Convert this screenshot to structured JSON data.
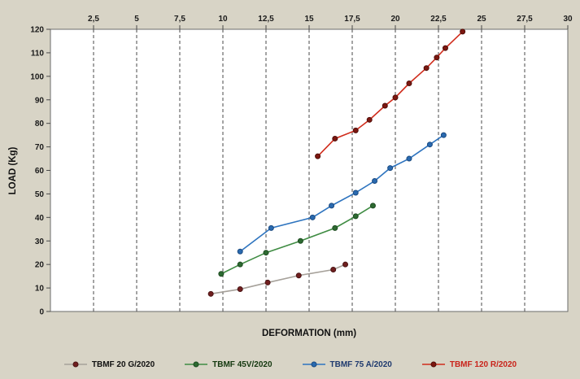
{
  "page": {
    "background_color": "#d8d4c6",
    "plot_background_color": "#ffffff",
    "grid_color": "#4a4a4a",
    "tick_label_color": "#1a1a1a"
  },
  "chart_data": {
    "type": "line",
    "title": "",
    "xlabel": "DEFORMATION (mm)",
    "ylabel": "LOAD (Kg)",
    "xlim": [
      0,
      30
    ],
    "ylim": [
      0,
      120
    ],
    "grid": "vertical-dashed-only",
    "legend_position": "bottom",
    "x_tick_values": [
      2.5,
      5,
      7.5,
      10,
      12.5,
      15,
      17.5,
      20,
      22.5,
      25,
      27.5,
      30
    ],
    "x_tick_labels": [
      "2,5",
      "5",
      "7,5",
      "10",
      "12,5",
      "15",
      "17,5",
      "20",
      "22,5",
      "25",
      "27,5",
      "30"
    ],
    "y_tick_values": [
      0,
      10,
      20,
      30,
      40,
      50,
      60,
      70,
      80,
      90,
      100,
      110,
      120
    ],
    "y_tick_labels": [
      "0",
      "10",
      "20",
      "30",
      "40",
      "50",
      "60",
      "70",
      "80",
      "90",
      "100",
      "110",
      "120"
    ],
    "series": [
      {
        "name": "TBMF 20 G/2020",
        "line_color": "#a6a19a",
        "marker_color": "#701f1f",
        "marker_stroke": "#4a1414",
        "label_color": "#101010",
        "points": [
          [
            9.3,
            7.5
          ],
          [
            11,
            9.5
          ],
          [
            12.6,
            12.3
          ],
          [
            14.4,
            15.3
          ],
          [
            16.4,
            17.8
          ],
          [
            17.1,
            20
          ]
        ]
      },
      {
        "name": "TBMF 45V/2020",
        "line_color": "#3f8c43",
        "marker_color": "#2d6a31",
        "marker_stroke": "#1d4a20",
        "label_color": "#14380f",
        "points": [
          [
            9.9,
            16
          ],
          [
            11,
            20
          ],
          [
            12.5,
            25
          ],
          [
            14.5,
            30
          ],
          [
            16.5,
            35.5
          ],
          [
            17.7,
            40.5
          ],
          [
            18.7,
            45
          ]
        ]
      },
      {
        "name": "TBMF 75 A/2020",
        "line_color": "#2e74bf",
        "marker_color": "#2a6ab0",
        "marker_stroke": "#1b4a80",
        "label_color": "#1f3a6e",
        "points": [
          [
            11,
            25.5
          ],
          [
            12.8,
            35.5
          ],
          [
            15.2,
            40
          ],
          [
            16.3,
            45
          ],
          [
            17.7,
            50.5
          ],
          [
            18.8,
            55.5
          ],
          [
            19.7,
            61
          ],
          [
            20.8,
            65
          ],
          [
            22,
            71
          ],
          [
            22.8,
            75
          ]
        ]
      },
      {
        "name": "TBMF 120 R/2020",
        "line_color": "#d02c1c",
        "marker_color": "#7d1710",
        "marker_stroke": "#4f0e09",
        "label_color": "#c9231a",
        "points": [
          [
            15.5,
            66
          ],
          [
            16.5,
            73.5
          ],
          [
            17.7,
            77
          ],
          [
            18.5,
            81.5
          ],
          [
            19.4,
            87.5
          ],
          [
            20,
            91
          ],
          [
            20.8,
            97
          ],
          [
            21.8,
            103.5
          ],
          [
            22.4,
            108
          ],
          [
            22.9,
            112
          ],
          [
            23.9,
            119
          ]
        ]
      }
    ]
  }
}
